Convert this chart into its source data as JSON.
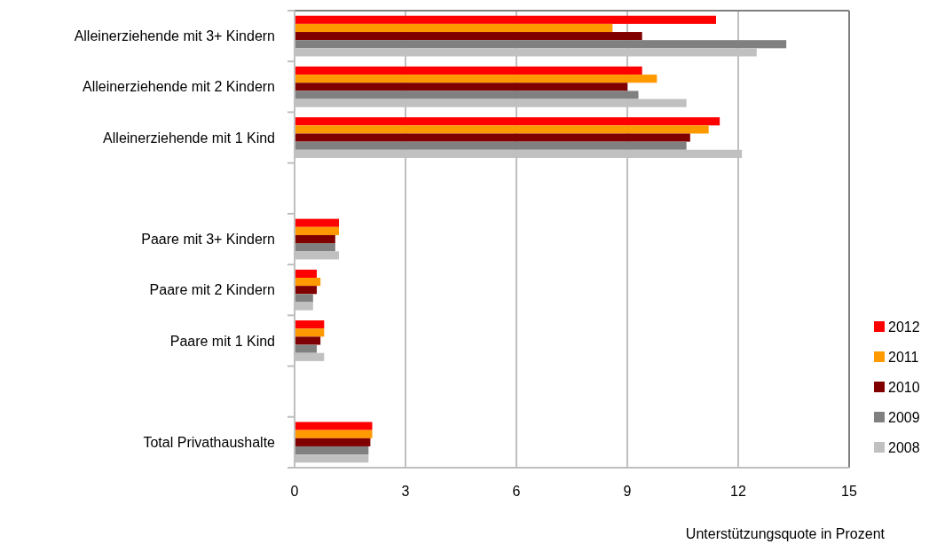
{
  "chart_data": {
    "type": "bar",
    "orientation": "horizontal",
    "xlabel": "Unterstützungsquote in Prozent",
    "categories": [
      "Alleinerziehende mit 3+ Kindern",
      "Alleinerziehende mit 2 Kindern",
      "Alleinerziehende mit 1 Kind",
      null,
      "Paare mit 3+ Kindern",
      "Paare mit 2 Kindern",
      "Paare mit 1 Kind",
      null,
      "Total Privathaushalte"
    ],
    "series": [
      {
        "name": "2012",
        "color": "#ff0000",
        "values": [
          11.4,
          9.4,
          11.5,
          null,
          1.2,
          0.6,
          0.8,
          null,
          2.1
        ]
      },
      {
        "name": "2011",
        "color": "#ff9900",
        "values": [
          8.6,
          9.8,
          11.2,
          null,
          1.2,
          0.7,
          0.8,
          null,
          2.1
        ]
      },
      {
        "name": "2010",
        "color": "#800000",
        "values": [
          9.4,
          9.0,
          10.7,
          null,
          1.1,
          0.6,
          0.7,
          null,
          2.05
        ]
      },
      {
        "name": "2009",
        "color": "#808080",
        "values": [
          13.3,
          9.3,
          10.6,
          null,
          1.1,
          0.5,
          0.6,
          null,
          2.0
        ]
      },
      {
        "name": "2008",
        "color": "#c0c0c0",
        "values": [
          12.5,
          10.6,
          12.1,
          null,
          1.2,
          0.5,
          0.8,
          null,
          2.0
        ]
      }
    ],
    "xlim": [
      0,
      15
    ],
    "xticks": [
      0,
      3,
      6,
      9,
      12,
      15
    ],
    "grid": "x",
    "legend": "bottom right"
  }
}
